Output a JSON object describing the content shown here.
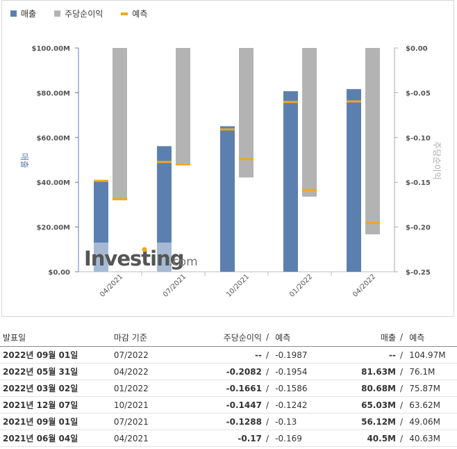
{
  "legend": [
    {
      "label": "매출",
      "color": "#5b80b0"
    },
    {
      "label": "주당순이익",
      "color": "#b3b3b3"
    },
    {
      "label": "예측",
      "color": "#f0a81c"
    }
  ],
  "watermark": {
    "text": "Investing",
    "suffix": ".com"
  },
  "chart_data": {
    "type": "bar",
    "categories": [
      "04/2021",
      "07/2021",
      "10/2021",
      "01/2022",
      "04/2022"
    ],
    "series": [
      {
        "name": "매출",
        "axis": "left",
        "values": [
          40.5,
          56.12,
          65.03,
          80.68,
          81.63
        ],
        "color": "#5b80b0"
      },
      {
        "name": "주당순이익",
        "axis": "right",
        "values": [
          -0.17,
          -0.1288,
          -0.1447,
          -0.1661,
          -0.2082
        ],
        "color": "#b3b3b3"
      }
    ],
    "forecasts": {
      "revenue": [
        40.63,
        49.06,
        63.62,
        75.87,
        76.1
      ],
      "eps": [
        -0.169,
        -0.13,
        -0.1242,
        -0.1586,
        -0.1954
      ]
    },
    "ylabel": "매출",
    "y2label": "주당순이익",
    "ylim": [
      0,
      100
    ],
    "y2lim": [
      -0.25,
      0
    ],
    "yticks": [
      "$0.00",
      "$20.00M",
      "$40.00M",
      "$60.00M",
      "$80.00M",
      "$100.00M"
    ],
    "y2ticks": [
      "$-0.25",
      "$-0.20",
      "$-0.15",
      "$-0.10",
      "$-0.05",
      "$0.00"
    ],
    "legend_position": "top-left"
  },
  "table": {
    "headers": {
      "date": "발표일",
      "period": "마감 기준",
      "eps": "주당순이익",
      "slash": "/",
      "eps_forecast": "예측",
      "revenue": "매출",
      "revenue_forecast": "예측"
    },
    "rows": [
      {
        "date": "2022년 09월 01일",
        "period": "07/2022",
        "eps": "--",
        "eps_color": "none",
        "eps_forecast": "-0.1987",
        "revenue": "--",
        "rev_color": "none",
        "revenue_forecast": "104.97M"
      },
      {
        "date": "2022년 05월 31일",
        "period": "04/2022",
        "eps": "-0.2082",
        "eps_color": "pos",
        "eps_forecast": "-0.1954",
        "revenue": "81.63M",
        "rev_color": "neg",
        "revenue_forecast": "76.1M"
      },
      {
        "date": "2022년 03월 02일",
        "period": "01/2022",
        "eps": "-0.1661",
        "eps_color": "pos",
        "eps_forecast": "-0.1586",
        "revenue": "80.68M",
        "rev_color": "neg",
        "revenue_forecast": "75.87M"
      },
      {
        "date": "2021년 12월 07일",
        "period": "10/2021",
        "eps": "-0.1447",
        "eps_color": "pos",
        "eps_forecast": "-0.1242",
        "revenue": "65.03M",
        "rev_color": "neg",
        "revenue_forecast": "63.62M"
      },
      {
        "date": "2021년 09월 01일",
        "period": "07/2021",
        "eps": "-0.1288",
        "eps_color": "neg",
        "eps_forecast": "-0.13",
        "revenue": "56.12M",
        "rev_color": "neg",
        "revenue_forecast": "49.06M"
      },
      {
        "date": "2021년 06월 04일",
        "period": "04/2021",
        "eps": "-0.17",
        "eps_color": "pos",
        "eps_forecast": "-0.169",
        "revenue": "40.5M",
        "rev_color": "pos",
        "revenue_forecast": "40.63M"
      }
    ]
  }
}
